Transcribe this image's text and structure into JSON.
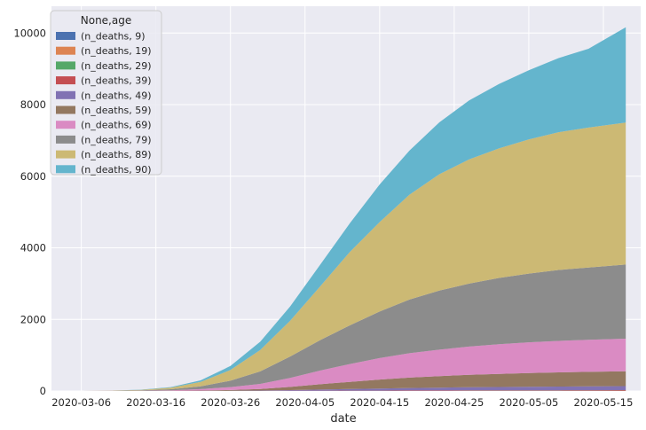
{
  "chart_data": {
    "type": "area",
    "stacked": true,
    "xlabel": "date",
    "ylabel": "",
    "xlim": [
      "2020-03-02",
      "2020-05-20"
    ],
    "ylim": [
      0,
      10750
    ],
    "y_ticks": [
      0,
      2000,
      4000,
      6000,
      8000,
      10000
    ],
    "x_ticks": [
      "2020-03-06",
      "2020-03-16",
      "2020-03-26",
      "2020-04-05",
      "2020-04-15",
      "2020-04-25",
      "2020-05-05",
      "2020-05-15"
    ],
    "grid": true,
    "legend": {
      "title": "None,age",
      "placement": "top-left"
    },
    "x": [
      "2020-03-06",
      "2020-03-10",
      "2020-03-14",
      "2020-03-18",
      "2020-03-22",
      "2020-03-26",
      "2020-03-30",
      "2020-04-03",
      "2020-04-07",
      "2020-04-11",
      "2020-04-15",
      "2020-04-19",
      "2020-04-23",
      "2020-04-27",
      "2020-05-01",
      "2020-05-05",
      "2020-05-09",
      "2020-05-13",
      "2020-05-18"
    ],
    "series": [
      {
        "name": "(n_deaths, 9)",
        "color": "#4c72b0",
        "values": [
          0,
          0,
          0,
          0,
          0,
          0,
          0,
          0,
          0,
          0,
          0,
          0,
          0,
          0,
          0,
          0,
          0,
          0,
          0
        ]
      },
      {
        "name": "(n_deaths, 19)",
        "color": "#dd8452",
        "values": [
          0,
          0,
          0,
          0,
          0,
          0,
          0,
          0,
          0,
          0,
          0,
          0,
          0,
          0,
          0,
          0,
          0,
          0,
          0
        ]
      },
      {
        "name": "(n_deaths, 29)",
        "color": "#55a868",
        "values": [
          0,
          0,
          0,
          0,
          0,
          0,
          0,
          1,
          1,
          2,
          2,
          3,
          3,
          4,
          4,
          5,
          5,
          5,
          6
        ]
      },
      {
        "name": "(n_deaths, 39)",
        "color": "#c44e52",
        "values": [
          0,
          0,
          0,
          0,
          0,
          1,
          2,
          3,
          5,
          7,
          9,
          11,
          12,
          13,
          14,
          15,
          16,
          17,
          18
        ]
      },
      {
        "name": "(n_deaths, 49)",
        "color": "#8172b3",
        "values": [
          0,
          0,
          1,
          1,
          2,
          5,
          10,
          20,
          33,
          45,
          58,
          70,
          80,
          88,
          94,
          100,
          104,
          108,
          112
        ]
      },
      {
        "name": "(n_deaths, 59)",
        "color": "#937860",
        "values": [
          0,
          0,
          1,
          4,
          10,
          22,
          45,
          90,
          150,
          200,
          250,
          290,
          320,
          345,
          365,
          380,
          395,
          405,
          415
        ]
      },
      {
        "name": "(n_deaths, 69)",
        "color": "#da8bc3",
        "values": [
          0,
          2,
          5,
          15,
          40,
          80,
          140,
          250,
          380,
          500,
          600,
          680,
          740,
          790,
          830,
          860,
          880,
          895,
          910
        ]
      },
      {
        "name": "(n_deaths, 79)",
        "color": "#8c8c8c",
        "values": [
          0,
          3,
          10,
          30,
          80,
          180,
          350,
          600,
          850,
          1080,
          1300,
          1500,
          1650,
          1760,
          1850,
          1920,
          1980,
          2020,
          2070
        ]
      },
      {
        "name": "(n_deaths, 89)",
        "color": "#ccb974",
        "values": [
          1,
          5,
          15,
          45,
          120,
          300,
          600,
          1000,
          1500,
          2050,
          2500,
          2930,
          3250,
          3470,
          3620,
          3750,
          3850,
          3910,
          3970
        ]
      },
      {
        "name": "(n_deaths, 90)",
        "color": "#64b5cd",
        "values": [
          0,
          1,
          5,
          15,
          45,
          110,
          230,
          400,
          600,
          800,
          1050,
          1230,
          1450,
          1650,
          1800,
          1930,
          2070,
          2200,
          2660
        ]
      }
    ]
  }
}
